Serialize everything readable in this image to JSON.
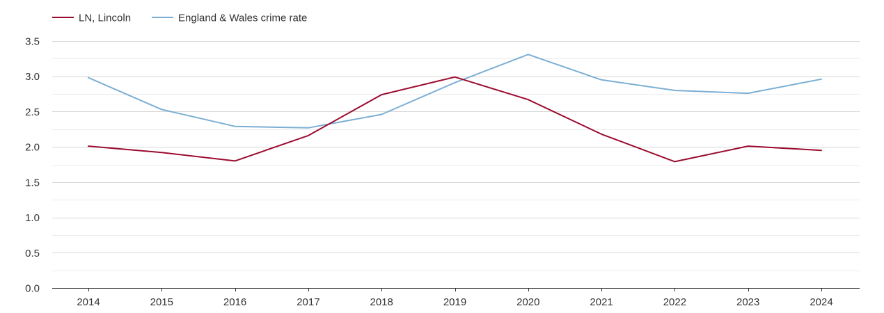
{
  "chart_data": {
    "type": "line",
    "title": "",
    "xlabel": "",
    "ylabel": "",
    "categories": [
      "2014",
      "2015",
      "2016",
      "2017",
      "2018",
      "2019",
      "2020",
      "2021",
      "2022",
      "2023",
      "2024"
    ],
    "ylim": [
      0,
      3.5
    ],
    "yticks": [
      "0.0",
      "0.5",
      "1.0",
      "1.5",
      "2.0",
      "2.5",
      "3.0",
      "3.5"
    ],
    "grid": true,
    "legend_position": "top-left",
    "series": [
      {
        "name": "LN, Lincoln",
        "color": "#9b0b2e",
        "values": [
          2.01,
          1.92,
          1.8,
          2.16,
          2.74,
          2.99,
          2.67,
          2.18,
          1.79,
          2.01,
          1.95
        ]
      },
      {
        "name": "England & Wales crime rate",
        "color": "#7bafd4",
        "values": [
          2.98,
          2.53,
          2.29,
          2.27,
          2.46,
          2.91,
          3.31,
          2.95,
          2.8,
          2.76,
          2.96
        ]
      }
    ]
  }
}
